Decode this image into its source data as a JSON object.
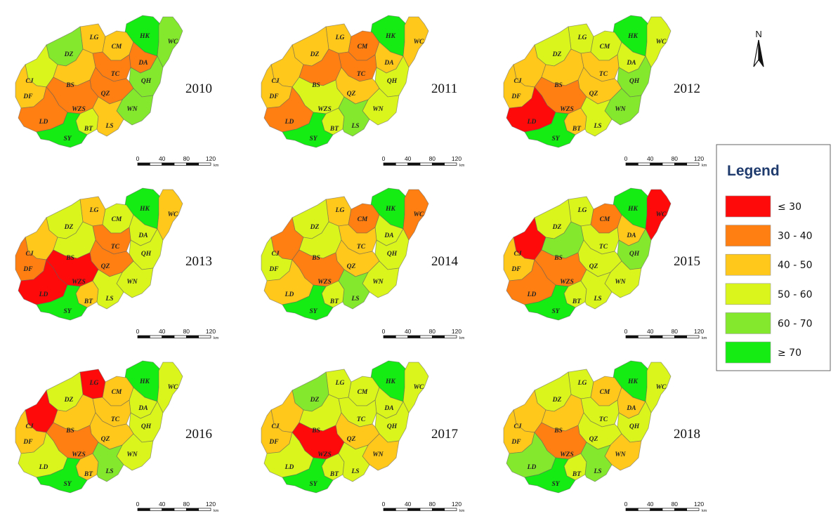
{
  "colors": {
    "le30": "#ff0a0a",
    "c30_40": "#ff7f12",
    "c40_50": "#ffc81b",
    "c50_60": "#d9f51c",
    "c60_70": "#84e92c",
    "ge70": "#14ec14"
  },
  "regions": [
    "HK",
    "WC",
    "LG",
    "CM",
    "DA",
    "DZ",
    "TC",
    "QH",
    "CJ",
    "BS",
    "QZ",
    "DF",
    "WZS",
    "WN",
    "LD",
    "BT",
    "LS",
    "SY"
  ],
  "panels": [
    {
      "year": "2010",
      "classes": {
        "HK": "ge70",
        "WC": "c60_70",
        "LG": "c40_50",
        "CM": "c40_50",
        "DA": "c30_40",
        "DZ": "c60_70",
        "TC": "c30_40",
        "QH": "c60_70",
        "CJ": "c50_60",
        "BS": "c40_50",
        "QZ": "c30_40",
        "DF": "c40_50",
        "WZS": "c30_40",
        "WN": "c60_70",
        "LD": "c30_40",
        "BT": "c50_60",
        "LS": "c40_50",
        "SY": "ge70"
      }
    },
    {
      "year": "2011",
      "classes": {
        "HK": "ge70",
        "WC": "c40_50",
        "LG": "c40_50",
        "CM": "c30_40",
        "DA": "c40_50",
        "DZ": "c40_50",
        "TC": "c30_40",
        "QH": "c50_60",
        "CJ": "c40_50",
        "BS": "c30_40",
        "QZ": "c40_50",
        "DF": "c40_50",
        "WZS": "c50_60",
        "WN": "c50_60",
        "LD": "c30_40",
        "BT": "c50_60",
        "LS": "c60_70",
        "SY": "ge70"
      }
    },
    {
      "year": "2012",
      "classes": {
        "HK": "ge70",
        "WC": "c50_60",
        "LG": "c50_60",
        "CM": "c50_60",
        "DA": "c50_60",
        "DZ": "c50_60",
        "TC": "c40_50",
        "QH": "c60_70",
        "CJ": "c40_50",
        "BS": "c40_50",
        "QZ": "c40_50",
        "DF": "c40_50",
        "WZS": "c30_40",
        "WN": "c60_70",
        "LD": "le30",
        "BT": "c40_50",
        "LS": "c50_60",
        "SY": "ge70"
      }
    },
    {
      "year": "2013",
      "classes": {
        "HK": "ge70",
        "WC": "c40_50",
        "LG": "c40_50",
        "CM": "c50_60",
        "DA": "c50_60",
        "DZ": "c50_60",
        "TC": "c30_40",
        "QH": "c50_60",
        "CJ": "c40_50",
        "BS": "c50_60",
        "QZ": "c30_40",
        "DF": "c30_40",
        "WZS": "le30",
        "WN": "c50_60",
        "LD": "le30",
        "BT": "c40_50",
        "LS": "c50_60",
        "SY": "ge70"
      }
    },
    {
      "year": "2014",
      "classes": {
        "HK": "ge70",
        "WC": "c30_40",
        "LG": "c40_50",
        "CM": "c30_40",
        "DA": "c50_60",
        "DZ": "c50_60",
        "TC": "c40_50",
        "QH": "c50_60",
        "CJ": "c30_40",
        "BS": "c50_60",
        "QZ": "c40_50",
        "DF": "c50_60",
        "WZS": "c30_40",
        "WN": "c50_60",
        "LD": "c40_50",
        "BT": "c50_60",
        "LS": "c60_70",
        "SY": "ge70"
      }
    },
    {
      "year": "2015",
      "classes": {
        "HK": "ge70",
        "WC": "le30",
        "LG": "c50_60",
        "CM": "c30_40",
        "DA": "c40_50",
        "DZ": "c50_60",
        "TC": "c50_60",
        "QH": "c60_70",
        "CJ": "le30",
        "BS": "c60_70",
        "QZ": "c50_60",
        "DF": "c40_50",
        "WZS": "c30_40",
        "WN": "c50_60",
        "LD": "c30_40",
        "BT": "c50_60",
        "LS": "c50_60",
        "SY": "ge70"
      }
    },
    {
      "year": "2016",
      "classes": {
        "HK": "ge70",
        "WC": "c50_60",
        "LG": "le30",
        "CM": "c40_50",
        "DA": "c50_60",
        "DZ": "c50_60",
        "TC": "c40_50",
        "QH": "c50_60",
        "CJ": "le30",
        "BS": "c40_50",
        "QZ": "c40_50",
        "DF": "c40_50",
        "WZS": "c30_40",
        "WN": "c50_60",
        "LD": "c50_60",
        "BT": "c40_50",
        "LS": "c60_70",
        "SY": "ge70"
      }
    },
    {
      "year": "2017",
      "classes": {
        "HK": "ge70",
        "WC": "c50_60",
        "LG": "c50_60",
        "CM": "c50_60",
        "DA": "c50_60",
        "DZ": "c60_70",
        "TC": "c50_60",
        "QH": "c50_60",
        "CJ": "c40_50",
        "BS": "c50_60",
        "QZ": "c40_50",
        "DF": "c40_50",
        "WZS": "le30",
        "WN": "c40_50",
        "LD": "c50_60",
        "BT": "c50_60",
        "LS": "c50_60",
        "SY": "ge70"
      }
    },
    {
      "year": "2018",
      "classes": {
        "HK": "ge70",
        "WC": "c50_60",
        "LG": "c50_60",
        "CM": "c40_50",
        "DA": "c40_50",
        "DZ": "c50_60",
        "TC": "c50_60",
        "QH": "c50_60",
        "CJ": "c40_50",
        "BS": "c40_50",
        "QZ": "c50_60",
        "DF": "c40_50",
        "WZS": "c30_40",
        "WN": "c40_50",
        "LD": "c60_70",
        "BT": "c50_60",
        "LS": "c60_70",
        "SY": "ge70"
      }
    }
  ],
  "scale_bar": {
    "ticks": [
      "0",
      "40",
      "80",
      "120"
    ],
    "unit": "km"
  },
  "north_arrow": {
    "letter": "N",
    "icon": "north-arrow-icon"
  },
  "legend": {
    "title": "Legend",
    "items": [
      {
        "label": "≤ 30",
        "color_key": "le30"
      },
      {
        "label": "30 - 40",
        "color_key": "c30_40"
      },
      {
        "label": "40 - 50",
        "color_key": "c40_50"
      },
      {
        "label": "50 - 60",
        "color_key": "c50_60"
      },
      {
        "label": "60 - 70",
        "color_key": "c60_70"
      },
      {
        "label": "≥ 70",
        "color_key": "ge70"
      }
    ]
  }
}
